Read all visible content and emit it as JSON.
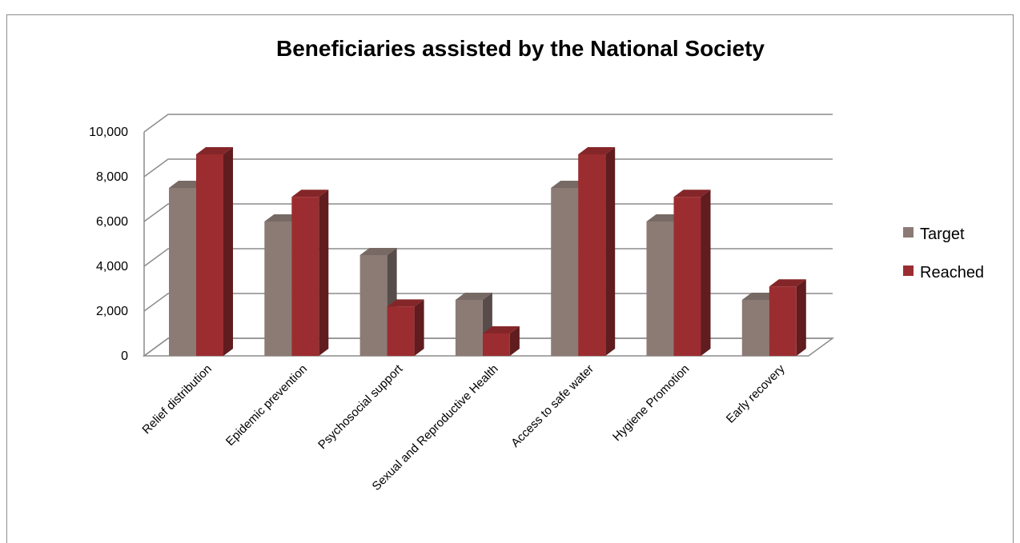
{
  "chart_data": {
    "type": "bar",
    "title": "Beneficiaries assisted by the National Society",
    "categories": [
      "Relief distribution",
      "Epidemic prevention",
      "Psychosocial support",
      "Sexual and Reproductive Health",
      "Access to safe water",
      "Hygiene Promotion",
      "Early recovery"
    ],
    "series": [
      {
        "name": "Target",
        "values": [
          7500,
          6000,
          4500,
          2500,
          7500,
          6000,
          2500
        ],
        "color": "#8c7b75"
      },
      {
        "name": "Reached",
        "values": [
          9000,
          7100,
          2200,
          1000,
          9000,
          7100,
          3100
        ],
        "color": "#9b2d30"
      }
    ],
    "y_tick_labels": [
      "0",
      "2,000",
      "4,000",
      "6,000",
      "8,000",
      "10,000"
    ],
    "ylim": [
      0,
      10000
    ],
    "grid": true,
    "legend_position": "right",
    "xlabel": "",
    "ylabel": ""
  }
}
